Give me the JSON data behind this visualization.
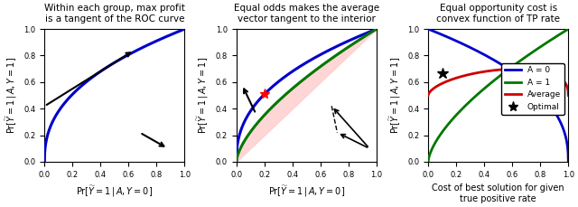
{
  "panel1_title": "Within each group, max profit\nis a tangent of the ROC curve",
  "panel2_title": "Equal odds makes the average\nvector tangent to the interior",
  "panel3_title": "Equal opportunity cost is\nconvex function of TP rate",
  "xlabel_roc": "Pr[$\\widetilde{Y}=1\\,|\\,A,Y=0]$",
  "ylabel_roc": "Pr[$\\widetilde{Y}=1\\,|\\,A,Y=1]$",
  "xlabel_p3": "Cost of best solution for given\ntrue positive rate",
  "curve1_color": "#0000cc",
  "curve2_color": "#007700",
  "avg_color": "#cc0000",
  "fill_color": "#ffcccc",
  "legend_labels": [
    "A = 0",
    "A = 1",
    "Average",
    "Optimal"
  ],
  "optimal_star": [
    0.1,
    0.67
  ],
  "roc_blue_exp": 0.42,
  "roc_green_exp": 0.65
}
